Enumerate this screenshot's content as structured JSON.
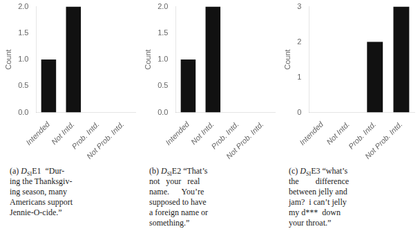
{
  "chart_data": [
    {
      "type": "bar",
      "categories": [
        "Intended",
        "Not Intd.",
        "Prob. Intd.",
        "Not Prob. Intd."
      ],
      "values": [
        1,
        2,
        0,
        0
      ],
      "color": "#111111",
      "ylabel": "Count",
      "ylim": [
        0,
        2.0
      ],
      "yticks": [
        {
          "value": 0,
          "label": "0.0"
        },
        0.5,
        {
          "value": 1,
          "label": "1.0"
        },
        1.5,
        {
          "value": 2,
          "label": "2.0"
        }
      ],
      "grid": false,
      "caption": {
        "prefix": "(a) ",
        "symbol": "D",
        "subscript": "SI",
        "text": "E1  “Dur-\ning the Thanksgiv-\ning season, many\nAmericans support\nJennie-O-cide.”"
      }
    },
    {
      "type": "bar",
      "categories": [
        "Intended",
        "Not Intd.",
        "Prob. Intd.",
        "Not Prob. Intd."
      ],
      "values": [
        1,
        2,
        0,
        0
      ],
      "color": "#111111",
      "ylabel": "Count",
      "ylim": [
        0,
        2.0
      ],
      "yticks": [
        {
          "value": 0,
          "label": "0.0"
        },
        0.5,
        {
          "value": 1,
          "label": "1.0"
        },
        1.5,
        {
          "value": 2,
          "label": "2.0"
        }
      ],
      "grid": false,
      "caption": {
        "prefix": "(b) ",
        "symbol": "D",
        "subscript": "SI",
        "text": "E2 “That’s\nnot   your   real\nname.      You’re\nsupposed to have\na foreign name or\nsomething.”"
      }
    },
    {
      "type": "bar",
      "categories": [
        "Intended",
        "Not Intd.",
        "Prob. Intd.",
        "Not Prob. Intd."
      ],
      "values": [
        0,
        0,
        2,
        3
      ],
      "color": "#111111",
      "ylabel": "Count",
      "ylim": [
        0,
        3
      ],
      "yticks": [
        0,
        1,
        2,
        3
      ],
      "grid": false,
      "caption": {
        "prefix": "(c) ",
        "symbol": "D",
        "subscript": "SI",
        "text": "E3 “what’s\nthe        difference\nbetween jelly and\njam?  i can’t jelly\nmy d***  down\nyour throat.”"
      }
    }
  ]
}
